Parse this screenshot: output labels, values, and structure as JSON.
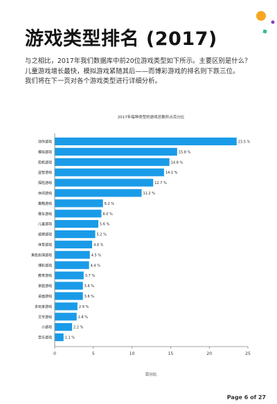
{
  "header": {
    "title": "游戏类型排名 (2017)",
    "intro_lines": [
      "与之相比，2017年我们数据库中前20位游戏类型如下所示。主要区别是什么？",
      "儿童游戏增长最快，模拟游戏紧随其后——而博彩游戏的排名则下跌三位。",
      "我们将在下一页对各个游戏类型进行详细分析。"
    ]
  },
  "decorations": {
    "orange_circle": "#f7a623",
    "purple_dot": "#8b3fbf",
    "green_square": "#2bbf8a"
  },
  "chart_data": {
    "type": "bar",
    "orientation": "horizontal",
    "title": "2017年每种类型的游戏总数所占百分比",
    "xlabel": "百分比",
    "ylabel": "",
    "xlim": [
      0,
      25
    ],
    "xticks": [
      "0",
      "5",
      "10",
      "15",
      "20",
      "25"
    ],
    "bar_color": "#1a9be8",
    "categories": [
      "动作游戏",
      "模拟游戏",
      "街机游戏",
      "益智游戏",
      "探险游戏",
      "休闲游戏",
      "策略游戏",
      "赛车游戏",
      "儿童游戏",
      "纸牌游戏",
      "体育游戏",
      "角色扮演游戏",
      "博彩游戏",
      "教育游戏",
      "家庭游戏",
      "桌面游戏",
      "多玩家游戏",
      "文字游戏",
      "小游戏",
      "音乐游戏"
    ],
    "values": [
      23.5,
      15.8,
      14.8,
      14.1,
      12.7,
      11.2,
      6.2,
      6.0,
      5.6,
      5.2,
      4.8,
      4.5,
      4.4,
      3.7,
      3.6,
      3.6,
      2.9,
      2.8,
      2.2,
      1.1
    ],
    "value_labels": [
      "23.5 %",
      "15.8 %",
      "14.8 %",
      "14.1 %",
      "12.7 %",
      "11.2 %",
      "6.2 %",
      "6.0 %",
      "5.6 %",
      "5.2 %",
      "4.8 %",
      "4.5 %",
      "4.4 %",
      "3.7 %",
      "3.6 %",
      "3.6 %",
      "2.9 %",
      "2.8 %",
      "2.2 %",
      "1.1 %"
    ],
    "grid": false
  },
  "footer": {
    "page_label": "Page 6 of 27"
  }
}
